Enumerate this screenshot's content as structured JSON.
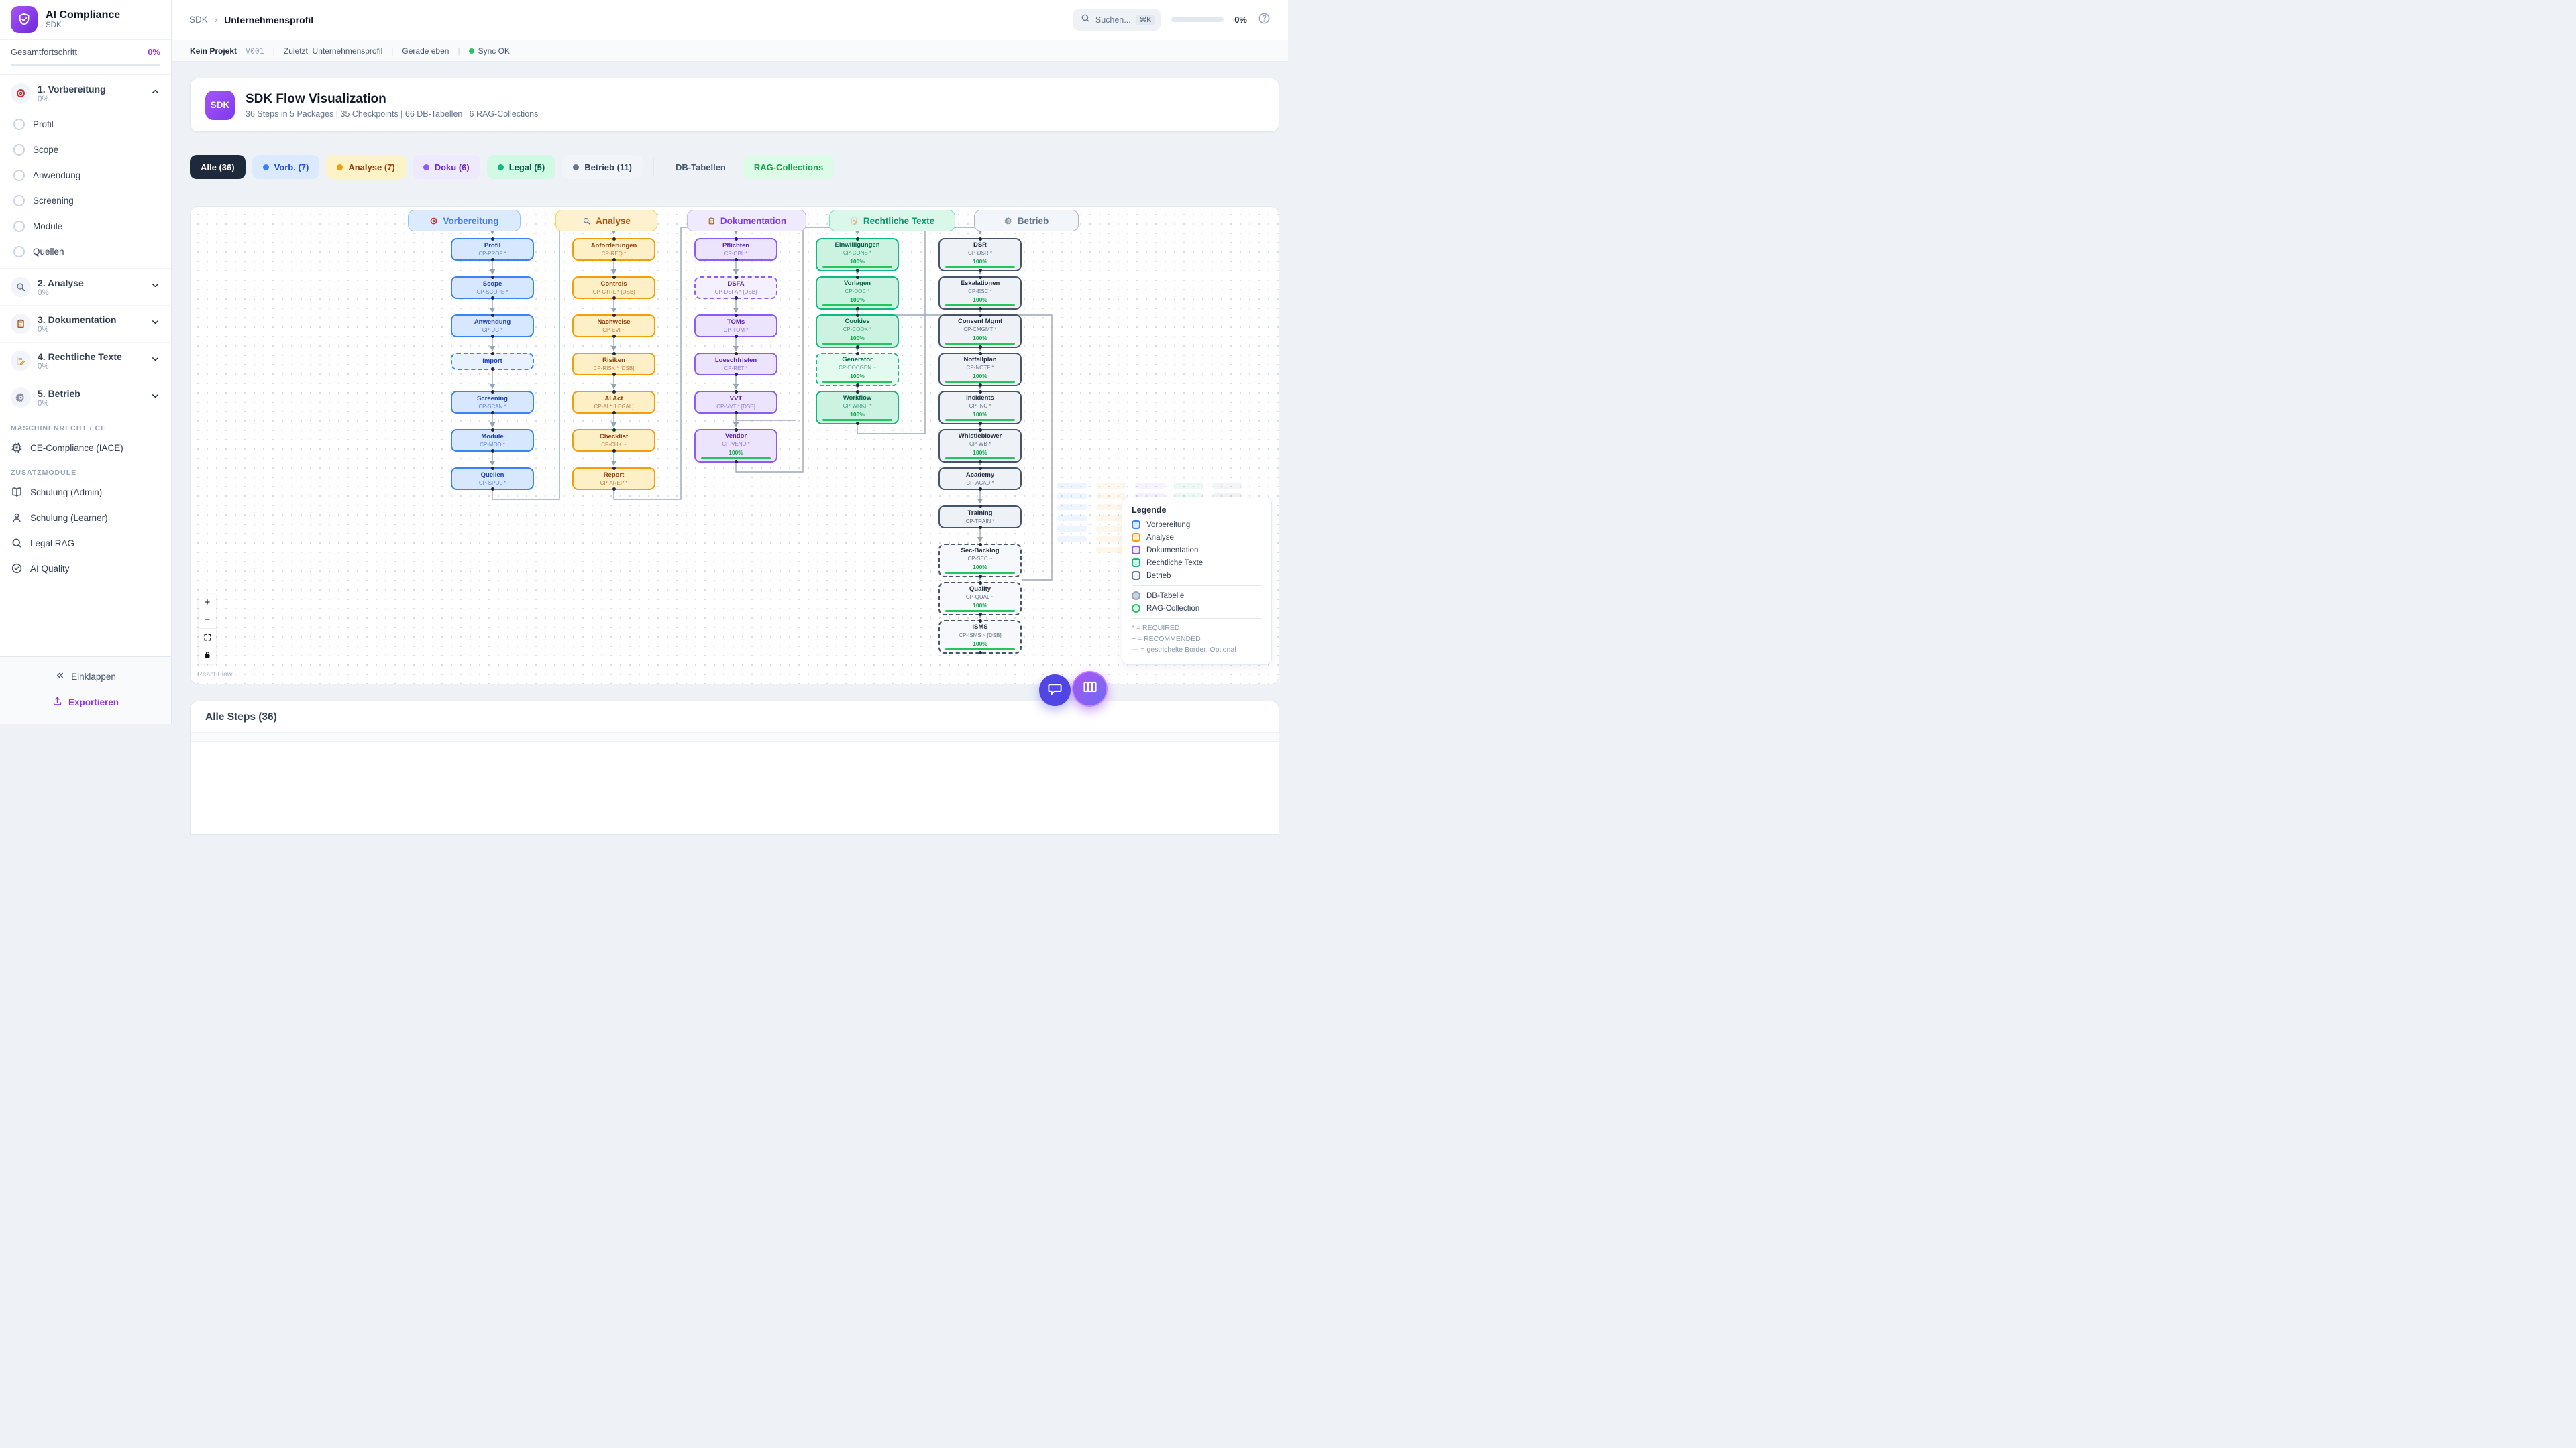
{
  "sidebar": {
    "logo_title": "AI Compliance",
    "logo_subtitle": "SDK",
    "progress_label": "Gesamtfortschritt",
    "progress_value": "0%",
    "sections": [
      {
        "icon": "target",
        "label": "1. Vorbereitung",
        "pct": "0%",
        "expanded": true,
        "items": [
          "Profil",
          "Scope",
          "Anwendung",
          "Screening",
          "Module",
          "Quellen"
        ]
      },
      {
        "icon": "magnifier",
        "label": "2. Analyse",
        "pct": "0%",
        "expanded": false,
        "items": []
      },
      {
        "icon": "clipboard",
        "label": "3. Dokumentation",
        "pct": "0%",
        "expanded": false,
        "items": []
      },
      {
        "icon": "memo",
        "label": "4. Rechtliche Texte",
        "pct": "0%",
        "expanded": false,
        "items": []
      },
      {
        "icon": "gear",
        "label": "5. Betrieb",
        "pct": "0%",
        "expanded": false,
        "items": []
      }
    ],
    "group_machine_label": "MASCHINENRECHT / CE",
    "ce_item": {
      "icon": "chip",
      "label": "CE-Compliance (IACE)"
    },
    "group_modules_label": "ZUSATZMODULE",
    "modules": [
      {
        "icon": "book",
        "label": "Schulung (Admin)"
      },
      {
        "icon": "user",
        "label": "Schulung (Learner)"
      },
      {
        "icon": "search",
        "label": "Legal RAG"
      },
      {
        "icon": "check-circle",
        "label": "AI Quality"
      }
    ],
    "collapse_label": "Einklappen",
    "export_label": "Exportieren"
  },
  "topbar": {
    "breadcrumb_root": "SDK",
    "breadcrumb_sep": "›",
    "breadcrumb_current": "Unternehmensprofil",
    "search_placeholder": "Suchen...",
    "search_kbd": "⌘K",
    "progress_value": "0%"
  },
  "statusbar": {
    "project": "Kein Projekt",
    "version": "V001",
    "last": "Zuletzt: Unternehmensprofil",
    "time": "Gerade eben",
    "sync": "Sync OK"
  },
  "hero": {
    "badge": "SDK",
    "title": "SDK Flow Visualization",
    "subtitle": "36 Steps in 5 Packages | 35 Checkpoints | 66 DB-Tabellen | 6 RAG-Collections"
  },
  "filters": [
    {
      "label": "Alle (36)",
      "bg": "#1e293b",
      "color": "#ffffff",
      "dot": null,
      "active": true
    },
    {
      "label": "Vorb. (7)",
      "bg": "#dbeafe",
      "color": "#1d4ed8",
      "dot": "#3b82f6"
    },
    {
      "label": "Analyse (7)",
      "bg": "#fef3c7",
      "color": "#92400e",
      "dot": "#f59e0b"
    },
    {
      "label": "Doku (6)",
      "bg": "#ede9fe",
      "color": "#6d28d9",
      "dot": "#8b5cf6"
    },
    {
      "label": "Legal (5)",
      "bg": "#d1fae5",
      "color": "#065f46",
      "dot": "#10b981"
    },
    {
      "label": "Betrieb (11)",
      "bg": "#f1f5f9",
      "color": "#334155",
      "dot": "#64748b"
    }
  ],
  "filters_extra": [
    {
      "label": "DB-Tabellen",
      "bg": "#eef2f7",
      "color": "#475569"
    },
    {
      "label": "RAG-Collections",
      "bg": "#dcfce7",
      "color": "#16a34a"
    }
  ],
  "flow": {
    "columns": [
      {
        "key": "vorbereitung",
        "label": "Vorbereitung",
        "icon": "target",
        "border": "#93c5fd",
        "header_bg": "#dceafd",
        "header_color": "#3b82f6",
        "node_border": "#3b82f6",
        "node_bg": "#d7e7fd",
        "node_bg_soft": "#e8f1fe",
        "title_color": "#1e40af",
        "code_color": "#5a8bd6",
        "nodes": [
          {
            "title": "Profil",
            "code": "CP-PROF *"
          },
          {
            "title": "Scope",
            "code": "CP-SCOPE *"
          },
          {
            "title": "Anwendung",
            "code": "CP-UC *"
          },
          {
            "title": "Import",
            "code": null,
            "dashed": true,
            "compact": true
          },
          {
            "title": "Screening",
            "code": "CP-SCAN *"
          },
          {
            "title": "Module",
            "code": "CP-MOD *"
          },
          {
            "title": "Quellen",
            "code": "CP-SPOL *"
          }
        ]
      },
      {
        "key": "analyse",
        "label": "Analyse",
        "icon": "magnifier",
        "border": "#fcd34d",
        "header_bg": "#fdf2cd",
        "header_color": "#b45309",
        "node_border": "#f59e0b",
        "node_bg": "#fdf0c6",
        "node_bg_soft": "#fef7e0",
        "title_color": "#92400e",
        "code_color": "#c2804a",
        "nodes": [
          {
            "title": "Anforderungen",
            "code": "CP-REQ *"
          },
          {
            "title": "Controls",
            "code": "CP-CTRL * [DSB]"
          },
          {
            "title": "Nachweise",
            "code": "CP-EVI ~"
          },
          {
            "title": "Risiken",
            "code": "CP-RISK * [DSB]"
          },
          {
            "title": "AI Act",
            "code": "CP-AI * [LEGAL]"
          },
          {
            "title": "Checklist",
            "code": "CP-CHK ~"
          },
          {
            "title": "Report",
            "code": "CP-AREP *"
          }
        ]
      },
      {
        "key": "dokumentation",
        "label": "Dokumentation",
        "icon": "clipboard",
        "border": "#c4b5fd",
        "header_bg": "#efeafd",
        "header_color": "#7c3aed",
        "node_border": "#8b5cf6",
        "node_bg": "#ebe4fc",
        "node_bg_soft": "#f4f0fd",
        "title_color": "#5b21b6",
        "code_color": "#9377d8",
        "nodes": [
          {
            "title": "Pflichten",
            "code": "CP-OBL *"
          },
          {
            "title": "DSFA",
            "code": "CP-DSFA * [DSB]",
            "dashed": true
          },
          {
            "title": "TOMs",
            "code": "CP-TOM *"
          },
          {
            "title": "Loeschfristen",
            "code": "CP-RET *"
          },
          {
            "title": "VVT",
            "code": "CP-VVT * [DSB]"
          },
          {
            "title": "Vendor",
            "code": "CP-VEND *",
            "progress": "100%"
          }
        ]
      },
      {
        "key": "legal",
        "label": "Rechtliche Texte",
        "icon": "memo",
        "border": "#6ee7b7",
        "header_bg": "#d9f8e9",
        "header_color": "#059669",
        "node_border": "#10b981",
        "node_bg": "#ccf3e1",
        "node_bg_soft": "#e3faf0",
        "title_color": "#065f46",
        "code_color": "#3aa383",
        "nodes": [
          {
            "title": "Einwilligungen",
            "code": "CP-CONS *",
            "progress": "100%"
          },
          {
            "title": "Vorlagen",
            "code": "CP-DOC *",
            "progress": "100%"
          },
          {
            "title": "Cookies",
            "code": "CP-COOK *",
            "progress": "100%"
          },
          {
            "title": "Generator",
            "code": "CP-DOCGEN ~",
            "progress": "100%",
            "dashed": true
          },
          {
            "title": "Workflow",
            "code": "CP-WRKF *",
            "progress": "100%"
          }
        ]
      },
      {
        "key": "betrieb",
        "label": "Betrieb",
        "icon": "gear",
        "border": "#aab6c6",
        "header_bg": "#f2f5f9",
        "header_color": "#64748b",
        "node_border": "#475569",
        "node_bg": "#eef2f6",
        "node_bg_soft": "#f6f8fb",
        "title_color": "#1e293b",
        "code_color": "#64748b",
        "nodes": [
          {
            "title": "DSR",
            "code": "CP-DSR *",
            "progress": "100%"
          },
          {
            "title": "Eskalationen",
            "code": "CP-ESC *",
            "progress": "100%"
          },
          {
            "title": "Consent Mgmt",
            "code": "CP-CMGMT *",
            "progress": "100%"
          },
          {
            "title": "Notfallplan",
            "code": "CP-NOTF *",
            "progress": "100%"
          },
          {
            "title": "Incidents",
            "code": "CP-INC *",
            "progress": "100%"
          },
          {
            "title": "Whistleblower",
            "code": "CP-WB *",
            "progress": "100%"
          },
          {
            "title": "Academy",
            "code": "CP-ACAD *"
          },
          {
            "title": "Training",
            "code": "CP-TRAIN *"
          },
          {
            "title": "Sec-Backlog",
            "code": "CP-SEC ~",
            "progress": "100%",
            "dashed": true
          },
          {
            "title": "Quality",
            "code": "CP-QUAL ~",
            "progress": "100%",
            "dashed": true
          },
          {
            "title": "ISMS",
            "code": "CP-ISMS ~ [DSB]",
            "progress": "100%",
            "dashed": true
          }
        ]
      }
    ],
    "legend": {
      "title": "Legende",
      "packages": [
        {
          "label": "Vorbereitung",
          "border": "#3b82f6",
          "bg": "#dbeafe"
        },
        {
          "label": "Analyse",
          "border": "#f59e0b",
          "bg": "#fef3c7"
        },
        {
          "label": "Dokumentation",
          "border": "#8b5cf6",
          "bg": "#ede9fe"
        },
        {
          "label": "Rechtliche Texte",
          "border": "#10b981",
          "bg": "#d1fae5"
        },
        {
          "label": "Betrieb",
          "border": "#64748b",
          "bg": "#f1f5f9"
        }
      ],
      "shapes": [
        {
          "label": "DB-Tabelle",
          "border": "#94a3b8",
          "bg": "#cbd5e1"
        },
        {
          "label": "RAG-Collection",
          "border": "#22c55e",
          "bg": "#dcfce7"
        }
      ],
      "notes": [
        "* = REQUIRED",
        "~ = RECOMMENDED",
        "--- = gestrichelte Border: Optional"
      ]
    },
    "attribution": "React Flow"
  },
  "steps_panel": {
    "title": "Alle Steps (36)"
  }
}
